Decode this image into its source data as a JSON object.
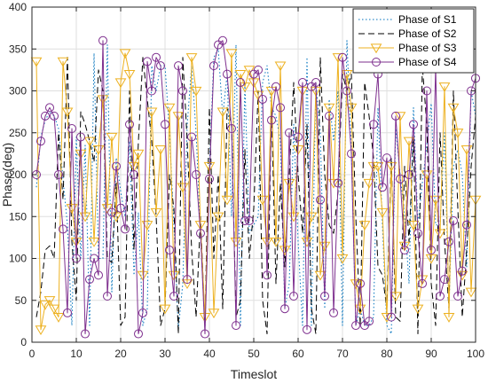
{
  "chart_data": {
    "type": "line",
    "xlabel": "Timeslot",
    "ylabel": "Phase(deg)",
    "xlim": [
      0,
      100
    ],
    "ylim": [
      0,
      400
    ],
    "xticks": [
      0,
      10,
      20,
      30,
      40,
      50,
      60,
      70,
      80,
      90,
      100
    ],
    "yticks": [
      0,
      50,
      100,
      150,
      200,
      250,
      300,
      350,
      400
    ],
    "grid": true,
    "legend_position": "top-right",
    "series": [
      {
        "name": "Phase of S1",
        "style": "dotted",
        "marker": "none",
        "color": "#0072BD",
        "x": [
          1,
          2,
          3,
          4,
          5,
          6,
          7,
          8,
          9,
          10,
          11,
          12,
          13,
          14,
          15,
          16,
          17,
          18,
          19,
          20,
          21,
          22,
          23,
          24,
          25,
          26,
          27,
          28,
          29,
          30,
          31,
          32,
          33,
          34,
          35,
          36,
          37,
          38,
          39,
          40,
          41,
          42,
          43,
          44,
          45,
          46,
          47,
          48,
          49,
          50,
          51,
          52,
          53,
          54,
          55,
          56,
          57,
          58,
          59,
          60,
          61,
          62,
          63,
          64,
          65,
          66,
          67,
          68,
          69,
          70,
          71,
          72,
          73,
          74,
          75,
          76,
          77,
          78,
          79,
          80,
          81,
          82,
          83,
          84,
          85,
          86,
          87,
          88,
          89,
          90,
          91,
          92,
          93,
          94,
          95,
          96,
          97,
          98,
          99,
          100
        ],
        "values": [
          185,
          245,
          265,
          275,
          270,
          255,
          195,
          140,
          20,
          245,
          100,
          235,
          20,
          345,
          100,
          100,
          355,
          60,
          220,
          180,
          150,
          240,
          80,
          155,
          20,
          40,
          330,
          300,
          330,
          330,
          250,
          140,
          15,
          70,
          260,
          330,
          250,
          130,
          15,
          210,
          340,
          350,
          270,
          320,
          150,
          355,
          20,
          310,
          130,
          140,
          150,
          310,
          330,
          280,
          270,
          240,
          40,
          70,
          260,
          120,
          20,
          340,
          20,
          310,
          250,
          40,
          290,
          240,
          300,
          20,
          360,
          230,
          20,
          40,
          20,
          20,
          30,
          280,
          140,
          20,
          10,
          255,
          200,
          150,
          70,
          280,
          140,
          190,
          235,
          285,
          140,
          140,
          250,
          40,
          210,
          230,
          200,
          90,
          300,
          270
        ]
      },
      {
        "name": "Phase of S2",
        "style": "dashed",
        "marker": "none",
        "color": "#000000",
        "x": [
          1,
          2,
          3,
          4,
          5,
          6,
          7,
          8,
          9,
          10,
          11,
          12,
          13,
          14,
          15,
          16,
          17,
          18,
          19,
          20,
          21,
          22,
          23,
          24,
          25,
          26,
          27,
          28,
          29,
          30,
          31,
          32,
          33,
          34,
          35,
          36,
          37,
          38,
          39,
          40,
          41,
          42,
          43,
          44,
          45,
          46,
          47,
          48,
          49,
          50,
          51,
          52,
          53,
          54,
          55,
          56,
          57,
          58,
          59,
          60,
          61,
          62,
          63,
          64,
          65,
          66,
          67,
          68,
          69,
          70,
          71,
          72,
          73,
          74,
          75,
          76,
          77,
          78,
          79,
          80,
          81,
          82,
          83,
          84,
          85,
          86,
          87,
          88,
          89,
          90,
          91,
          92,
          93,
          94,
          95,
          96,
          97,
          98,
          99,
          100
        ],
        "values": [
          30,
          60,
          110,
          115,
          100,
          250,
          170,
          340,
          120,
          50,
          275,
          260,
          240,
          215,
          325,
          300,
          100,
          95,
          190,
          20,
          30,
          300,
          110,
          240,
          340,
          290,
          240,
          150,
          20,
          40,
          200,
          160,
          10,
          340,
          240,
          110,
          30,
          150,
          20,
          280,
          100,
          200,
          40,
          280,
          260,
          30,
          50,
          230,
          100,
          160,
          300,
          50,
          10,
          280,
          70,
          190,
          90,
          200,
          310,
          200,
          130,
          260,
          40,
          10,
          340,
          200,
          140,
          130,
          180,
          320,
          300,
          320,
          150,
          20,
          310,
          270,
          220,
          90,
          80,
          40,
          220,
          30,
          25,
          210,
          120,
          245,
          10,
          330,
          260,
          70,
          20,
          250,
          120,
          40,
          300,
          160,
          30,
          110,
          210,
          270
        ]
      },
      {
        "name": "Phase of S3",
        "style": "solid",
        "marker": "triangle-down",
        "color": "#EDB120",
        "x": [
          1,
          2,
          3,
          4,
          5,
          6,
          7,
          8,
          9,
          10,
          11,
          12,
          13,
          14,
          15,
          16,
          17,
          18,
          19,
          20,
          21,
          22,
          23,
          24,
          25,
          26,
          27,
          28,
          29,
          30,
          31,
          32,
          33,
          34,
          35,
          36,
          37,
          38,
          39,
          40,
          41,
          42,
          43,
          44,
          45,
          46,
          47,
          48,
          49,
          50,
          51,
          52,
          53,
          54,
          55,
          56,
          57,
          58,
          59,
          60,
          61,
          62,
          63,
          64,
          65,
          66,
          67,
          68,
          69,
          70,
          71,
          72,
          73,
          74,
          75,
          76,
          77,
          78,
          79,
          80,
          81,
          82,
          83,
          84,
          85,
          86,
          87,
          88,
          89,
          90,
          91,
          92,
          93,
          94,
          95,
          96,
          97,
          98,
          99,
          100
        ],
        "values": [
          335,
          15,
          45,
          50,
          40,
          30,
          335,
          275,
          160,
          120,
          225,
          150,
          240,
          120,
          230,
          290,
          160,
          245,
          150,
          310,
          345,
          320,
          210,
          225,
          80,
          140,
          275,
          155,
          230,
          40,
          280,
          80,
          270,
          185,
          70,
          340,
          300,
          140,
          30,
          210,
          35,
          150,
          275,
          170,
          345,
          120,
          320,
          305,
          325,
          310,
          295,
          170,
          120,
          300,
          120,
          330,
          110,
          190,
          150,
          230,
          300,
          120,
          150,
          300,
          80,
          115,
          280,
          190,
          340,
          100,
          320,
          280,
          70,
          40,
          140,
          190,
          210,
          210,
          155,
          30,
          210,
          55,
          270,
          115,
          240,
          140,
          40,
          75,
          200,
          100,
          170,
          130,
          305,
          30,
          280,
          250,
          80,
          230,
          60,
          170
        ]
      },
      {
        "name": "Phase of S4",
        "style": "solid",
        "marker": "circle",
        "color": "#7E2F8E",
        "x": [
          1,
          2,
          3,
          4,
          5,
          6,
          7,
          8,
          9,
          10,
          11,
          12,
          13,
          14,
          15,
          16,
          17,
          18,
          19,
          20,
          21,
          22,
          23,
          24,
          25,
          26,
          27,
          28,
          29,
          30,
          31,
          32,
          33,
          34,
          35,
          36,
          37,
          38,
          39,
          40,
          41,
          42,
          43,
          44,
          45,
          46,
          47,
          48,
          49,
          50,
          51,
          52,
          53,
          54,
          55,
          56,
          57,
          58,
          59,
          60,
          61,
          62,
          63,
          64,
          65,
          66,
          67,
          68,
          69,
          70,
          71,
          72,
          73,
          74,
          75,
          76,
          77,
          78,
          79,
          80,
          81,
          82,
          83,
          84,
          85,
          86,
          87,
          88,
          89,
          90,
          91,
          92,
          93,
          94,
          95,
          96,
          97,
          98,
          99,
          100
        ],
        "values": [
          200,
          240,
          270,
          280,
          270,
          200,
          135,
          35,
          255,
          100,
          245,
          10,
          75,
          100,
          80,
          360,
          55,
          155,
          210,
          160,
          135,
          260,
          200,
          10,
          35,
          335,
          300,
          340,
          330,
          260,
          110,
          55,
          330,
          300,
          75,
          245,
          200,
          130,
          10,
          195,
          330,
          355,
          360,
          320,
          255,
          20,
          310,
          145,
          145,
          320,
          325,
          290,
          80,
          265,
          305,
          280,
          40,
          250,
          55,
          245,
          310,
          15,
          305,
          310,
          170,
          55,
          270,
          35,
          190,
          340,
          300,
          225,
          20,
          70,
          20,
          25,
          260,
          320,
          185,
          220,
          30,
          270,
          195,
          110,
          200,
          260,
          130,
          70,
          300,
          110,
          330,
          55,
          75,
          120,
          145,
          55,
          85,
          140,
          300,
          315
        ]
      }
    ]
  }
}
